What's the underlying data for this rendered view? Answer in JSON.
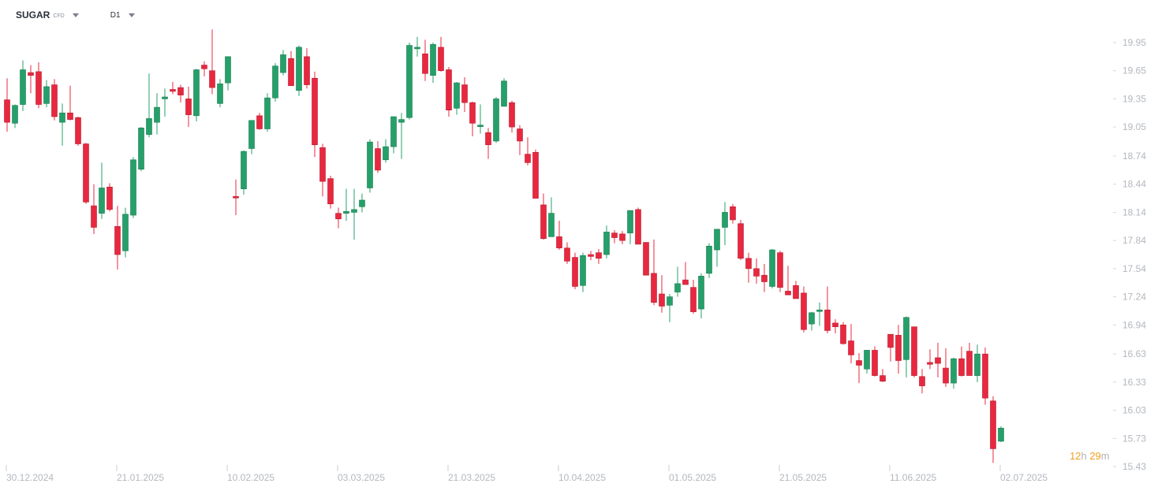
{
  "header": {
    "symbol": "SUGAR",
    "symbol_type": "CFD",
    "timeframe": "D1"
  },
  "countdown": {
    "hours": "12",
    "h": "h",
    "minutes": "29",
    "m": "m"
  },
  "colors": {
    "up": "#26a06a",
    "down": "#e8283f",
    "axis_text": "#b3b7be",
    "countdown_accent": "#f0a020"
  },
  "icons": [
    "chevron-down-icon"
  ],
  "chart_data": {
    "type": "candlestick",
    "xlabel": "",
    "ylabel": "",
    "ylim": [
      15.43,
      20.0
    ],
    "grid": false,
    "y_ticks": [
      19.95,
      19.65,
      19.35,
      19.05,
      18.74,
      18.44,
      18.14,
      17.84,
      17.54,
      17.24,
      16.94,
      16.63,
      16.33,
      16.03,
      15.73,
      15.43
    ],
    "x_tick_labels": [
      "30.12.2024",
      "21.01.2025",
      "10.02.2025",
      "03.03.2025",
      "21.03.2025",
      "10.04.2025",
      "01.05.2025",
      "21.05.2025",
      "11.06.2025",
      "02.07.2025"
    ],
    "x_tick_candle_index": [
      0,
      14,
      28,
      42,
      56,
      70,
      84,
      98,
      112,
      126
    ],
    "candles": [
      [
        19.34,
        19.57,
        19.0,
        19.1
      ],
      [
        19.09,
        19.29,
        19.04,
        19.28
      ],
      [
        19.29,
        19.76,
        19.22,
        19.66
      ],
      [
        19.63,
        19.71,
        19.41,
        19.6
      ],
      [
        19.64,
        19.74,
        19.25,
        19.29
      ],
      [
        19.3,
        19.55,
        19.26,
        19.48
      ],
      [
        19.5,
        19.56,
        19.12,
        19.16
      ],
      [
        19.1,
        19.3,
        18.85,
        19.2
      ],
      [
        19.2,
        19.49,
        19.12,
        19.13
      ],
      [
        19.15,
        19.16,
        18.85,
        18.87
      ],
      [
        18.87,
        18.88,
        18.23,
        18.25
      ],
      [
        18.21,
        18.44,
        17.91,
        17.98
      ],
      [
        18.13,
        18.67,
        18.07,
        18.4
      ],
      [
        18.41,
        18.45,
        18.15,
        18.17
      ],
      [
        17.99,
        18.21,
        17.53,
        17.69
      ],
      [
        17.73,
        18.19,
        17.66,
        18.12
      ],
      [
        18.11,
        18.73,
        18.08,
        18.7
      ],
      [
        18.6,
        19.05,
        18.58,
        19.04
      ],
      [
        18.97,
        19.62,
        18.94,
        19.14
      ],
      [
        19.1,
        19.41,
        18.97,
        19.26
      ],
      [
        19.35,
        19.46,
        19.16,
        19.37
      ],
      [
        19.45,
        19.53,
        19.4,
        19.43
      ],
      [
        19.47,
        19.5,
        19.31,
        19.39
      ],
      [
        19.35,
        19.48,
        19.05,
        19.18
      ],
      [
        19.17,
        19.67,
        19.11,
        19.66
      ],
      [
        19.71,
        19.75,
        19.59,
        19.67
      ],
      [
        19.65,
        20.09,
        19.4,
        19.47
      ],
      [
        19.3,
        19.56,
        19.26,
        19.51
      ],
      [
        19.52,
        19.8,
        19.44,
        19.8
      ],
      [
        18.31,
        18.49,
        18.11,
        18.3
      ],
      [
        18.39,
        18.8,
        18.33,
        18.79
      ],
      [
        18.82,
        19.12,
        18.76,
        19.12
      ],
      [
        19.17,
        19.2,
        19.02,
        19.03
      ],
      [
        19.03,
        19.41,
        19.0,
        19.36
      ],
      [
        19.36,
        19.73,
        19.32,
        19.7
      ],
      [
        19.63,
        19.87,
        19.6,
        19.82
      ],
      [
        19.78,
        19.86,
        19.51,
        19.49
      ],
      [
        19.44,
        19.92,
        19.38,
        19.9
      ],
      [
        19.8,
        19.89,
        19.46,
        19.5
      ],
      [
        19.57,
        19.64,
        18.73,
        18.86
      ],
      [
        18.83,
        18.87,
        18.31,
        18.47
      ],
      [
        18.5,
        18.53,
        18.18,
        18.23
      ],
      [
        18.13,
        18.19,
        17.97,
        18.07
      ],
      [
        18.13,
        18.39,
        18.05,
        18.15
      ],
      [
        18.14,
        18.39,
        17.85,
        18.17
      ],
      [
        18.2,
        18.34,
        18.14,
        18.27
      ],
      [
        18.4,
        18.92,
        18.35,
        18.89
      ],
      [
        18.82,
        18.9,
        18.56,
        18.59
      ],
      [
        18.7,
        18.92,
        18.67,
        18.84
      ],
      [
        18.84,
        19.16,
        18.77,
        19.16
      ],
      [
        19.1,
        19.2,
        18.71,
        19.13
      ],
      [
        19.15,
        19.95,
        19.13,
        19.92
      ],
      [
        19.9,
        20.01,
        19.8,
        19.9
      ],
      [
        19.83,
        19.98,
        19.54,
        19.62
      ],
      [
        19.6,
        19.95,
        19.52,
        19.93
      ],
      [
        19.9,
        20.01,
        19.64,
        19.65
      ],
      [
        19.66,
        19.69,
        19.16,
        19.23
      ],
      [
        19.25,
        19.53,
        19.18,
        19.52
      ],
      [
        19.5,
        19.58,
        19.21,
        19.31
      ],
      [
        19.31,
        19.32,
        18.95,
        19.09
      ],
      [
        19.07,
        19.29,
        18.98,
        19.07
      ],
      [
        18.99,
        19.04,
        18.71,
        18.86
      ],
      [
        18.9,
        19.37,
        18.88,
        19.35
      ],
      [
        19.27,
        19.57,
        19.27,
        19.54
      ],
      [
        19.31,
        19.33,
        18.99,
        19.05
      ],
      [
        19.03,
        19.07,
        18.75,
        18.9
      ],
      [
        18.76,
        18.94,
        18.64,
        18.67
      ],
      [
        18.78,
        18.81,
        18.29,
        18.29
      ],
      [
        18.22,
        18.34,
        17.85,
        17.86
      ],
      [
        17.88,
        18.3,
        17.88,
        18.13
      ],
      [
        17.88,
        18.05,
        17.74,
        17.76
      ],
      [
        17.76,
        17.82,
        17.59,
        17.62
      ],
      [
        17.66,
        17.71,
        17.32,
        17.35
      ],
      [
        17.36,
        17.71,
        17.29,
        17.68
      ],
      [
        17.69,
        17.73,
        17.63,
        17.67
      ],
      [
        17.71,
        17.75,
        17.59,
        17.65
      ],
      [
        17.69,
        18.0,
        17.65,
        17.93
      ],
      [
        17.92,
        17.95,
        17.81,
        17.87
      ],
      [
        17.91,
        17.94,
        17.8,
        17.84
      ],
      [
        17.92,
        18.16,
        17.8,
        18.16
      ],
      [
        18.17,
        18.19,
        17.81,
        17.8
      ],
      [
        17.82,
        17.82,
        17.48,
        17.47
      ],
      [
        17.49,
        17.85,
        17.15,
        17.18
      ],
      [
        17.27,
        17.47,
        17.07,
        17.14
      ],
      [
        17.15,
        17.27,
        16.97,
        17.24
      ],
      [
        17.29,
        17.56,
        17.24,
        17.38
      ],
      [
        17.42,
        17.61,
        17.37,
        17.37
      ],
      [
        17.34,
        17.42,
        17.06,
        17.08
      ],
      [
        17.11,
        17.49,
        17.01,
        17.46
      ],
      [
        17.49,
        17.81,
        17.44,
        17.78
      ],
      [
        17.74,
        17.96,
        17.56,
        17.96
      ],
      [
        17.98,
        18.25,
        17.79,
        18.14
      ],
      [
        18.2,
        18.23,
        18.02,
        18.06
      ],
      [
        18.02,
        18.06,
        17.63,
        17.65
      ],
      [
        17.65,
        17.71,
        17.39,
        17.54
      ],
      [
        17.54,
        17.65,
        17.38,
        17.46
      ],
      [
        17.47,
        17.59,
        17.29,
        17.4
      ],
      [
        17.35,
        17.75,
        17.33,
        17.74
      ],
      [
        17.71,
        17.73,
        17.29,
        17.34
      ],
      [
        17.3,
        17.57,
        17.26,
        17.26
      ],
      [
        17.36,
        17.41,
        17.23,
        17.22
      ],
      [
        17.28,
        17.35,
        16.86,
        16.89
      ],
      [
        16.95,
        17.08,
        16.88,
        17.07
      ],
      [
        17.09,
        17.18,
        16.93,
        17.1
      ],
      [
        17.1,
        17.35,
        16.85,
        16.88
      ],
      [
        16.96,
        17.0,
        16.85,
        16.92
      ],
      [
        16.94,
        16.97,
        16.73,
        16.74
      ],
      [
        16.77,
        16.95,
        16.53,
        16.62
      ],
      [
        16.56,
        16.64,
        16.32,
        16.51
      ],
      [
        16.47,
        16.64,
        16.42,
        16.67
      ],
      [
        16.67,
        16.71,
        16.39,
        16.4
      ],
      [
        16.4,
        16.47,
        16.33,
        16.34
      ],
      [
        16.84,
        16.84,
        16.55,
        16.7
      ],
      [
        16.83,
        16.94,
        16.42,
        16.56
      ],
      [
        16.57,
        17.03,
        16.38,
        17.02
      ],
      [
        16.92,
        16.92,
        16.38,
        16.4
      ],
      [
        16.39,
        16.47,
        16.21,
        16.29
      ],
      [
        16.54,
        16.68,
        16.47,
        16.52
      ],
      [
        16.59,
        16.75,
        16.38,
        16.53
      ],
      [
        16.48,
        16.69,
        16.28,
        16.32
      ],
      [
        16.32,
        16.59,
        16.26,
        16.58
      ],
      [
        16.58,
        16.71,
        16.39,
        16.4
      ],
      [
        16.66,
        16.75,
        16.4,
        16.4
      ],
      [
        16.4,
        16.73,
        16.33,
        16.63
      ],
      [
        16.63,
        16.7,
        16.09,
        16.16
      ],
      [
        16.13,
        16.18,
        15.47,
        15.62
      ],
      [
        15.7,
        15.86,
        15.69,
        15.84
      ]
    ]
  }
}
